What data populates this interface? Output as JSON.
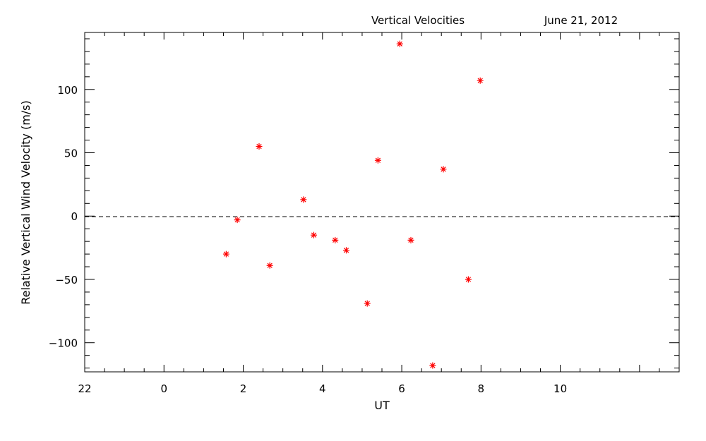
{
  "chart_data": {
    "type": "scatter",
    "title": "Vertical Velocities",
    "date": "June 21, 2012",
    "xlabel": "UT",
    "ylabel": "Relative Vertical Wind Velocity (m/s)",
    "x_tick_labels": [
      "22",
      "0",
      "2",
      "4",
      "6",
      "8",
      "10"
    ],
    "y_tick_labels": [
      "−100",
      "−50",
      "0",
      "50",
      "100"
    ],
    "xlim": [
      -2,
      13
    ],
    "ylim": [
      -123,
      145
    ],
    "marker": "asterisk",
    "marker_color": "#ff0000",
    "zero_line": "dashed",
    "points": [
      {
        "x": 1.57,
        "y": -30
      },
      {
        "x": 1.85,
        "y": -3
      },
      {
        "x": 2.4,
        "y": 55
      },
      {
        "x": 2.67,
        "y": -39
      },
      {
        "x": 3.52,
        "y": 13
      },
      {
        "x": 3.78,
        "y": -15
      },
      {
        "x": 4.32,
        "y": -19
      },
      {
        "x": 4.6,
        "y": -27
      },
      {
        "x": 5.13,
        "y": -69
      },
      {
        "x": 5.4,
        "y": 44
      },
      {
        "x": 5.95,
        "y": 136
      },
      {
        "x": 6.23,
        "y": -19
      },
      {
        "x": 6.78,
        "y": -118
      },
      {
        "x": 7.05,
        "y": 37
      },
      {
        "x": 7.68,
        "y": -50
      },
      {
        "x": 7.98,
        "y": 107
      }
    ]
  }
}
